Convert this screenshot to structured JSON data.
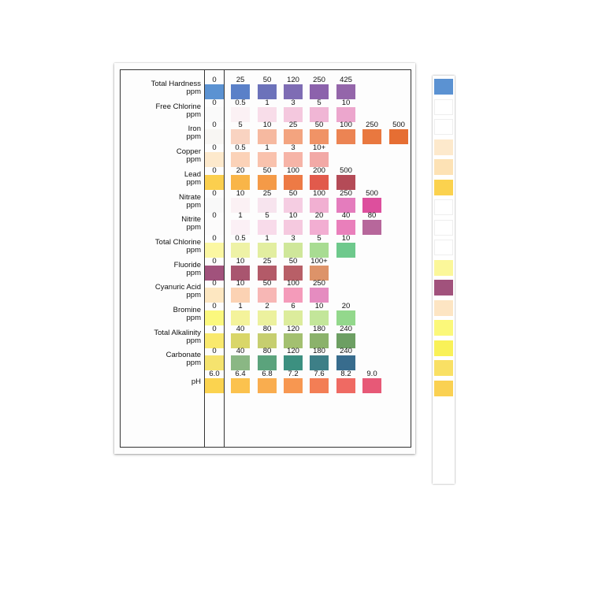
{
  "rows": [
    {
      "label": "Total Hardness",
      "unit": "ppm",
      "values": [
        "0",
        "25",
        "50",
        "120",
        "250",
        "425"
      ],
      "colors": [
        "#5b92d2",
        "#5a80c8",
        "#6c72ba",
        "#7e6cb4",
        "#8c62ac",
        "#9466aa"
      ]
    },
    {
      "label": "Free Chlorine",
      "unit": "ppm",
      "values": [
        "0",
        "0.5",
        "1",
        "3",
        "5",
        "10"
      ],
      "colors": [
        "#fafafa",
        "#fbf1f4",
        "#f8dde9",
        "#f4c8de",
        "#f0b6d5",
        "#eca6cd"
      ]
    },
    {
      "label": "Iron",
      "unit": "ppm",
      "values": [
        "0",
        "5",
        "10",
        "25",
        "50",
        "100",
        "250",
        "500"
      ],
      "colors": [
        "#f8f6f3",
        "#f9d3c1",
        "#f6b9a0",
        "#f3a47f",
        "#f09366",
        "#ec8453",
        "#e9783f",
        "#e66e33"
      ]
    },
    {
      "label": "Copper",
      "unit": "ppm",
      "values": [
        "0",
        "0.5",
        "1",
        "3",
        "10+"
      ],
      "colors": [
        "#fde9cc",
        "#fbd2b8",
        "#f9c2ad",
        "#f6b4a7",
        "#f2a9a6"
      ]
    },
    {
      "label": "Lead",
      "unit": "ppm",
      "values": [
        "0",
        "20",
        "50",
        "100",
        "200",
        "500"
      ],
      "colors": [
        "#fbcf4e",
        "#f9b548",
        "#f49a47",
        "#ed7a45",
        "#e15a4c",
        "#b44b57"
      ]
    },
    {
      "label": "Nitrate",
      "unit": "ppm",
      "values": [
        "0",
        "10",
        "25",
        "50",
        "100",
        "250",
        "500"
      ],
      "colors": [
        "#f9f9f9",
        "#fbf1f4",
        "#f7e4ee",
        "#f5cde2",
        "#f1b0d2",
        "#e47cbd",
        "#dd4f9d"
      ]
    },
    {
      "label": "Nitrite",
      "unit": "ppm",
      "values": [
        "0",
        "1",
        "5",
        "10",
        "20",
        "40",
        "80"
      ],
      "colors": [
        "#fcfbfb",
        "#fbf0f5",
        "#f8dbea",
        "#f5c9df",
        "#f2aed2",
        "#e97fbb",
        "#b7679b"
      ]
    },
    {
      "label": "Total Chlorine",
      "unit": "ppm",
      "values": [
        "0",
        "0.5",
        "1",
        "3",
        "5",
        "10"
      ],
      "colors": [
        "#fbf7a2",
        "#eef2a6",
        "#e2eea0",
        "#cfe79a",
        "#a8dc92",
        "#6ec98c"
      ]
    },
    {
      "label": "Fluoride",
      "unit": "ppm",
      "values": [
        "0",
        "10",
        "25",
        "50",
        "100+"
      ],
      "colors": [
        "#a1527c",
        "#a9556f",
        "#b35a68",
        "#b85f67",
        "#dd9369"
      ]
    },
    {
      "label": "Cyanuric Acid",
      "unit": "ppm",
      "values": [
        "0",
        "10",
        "50",
        "100",
        "250"
      ],
      "colors": [
        "#fde7c1",
        "#fbd2b3",
        "#f7b7b5",
        "#f49bba",
        "#e58cc0"
      ]
    },
    {
      "label": "Bromine",
      "unit": "ppm",
      "values": [
        "0",
        "1",
        "2",
        "6",
        "10",
        "20"
      ],
      "colors": [
        "#fbf87e",
        "#f4f39b",
        "#ecf19e",
        "#dcec9c",
        "#c3e69a",
        "#93d88c"
      ]
    },
    {
      "label": "Total Alkalinity",
      "unit": "ppm",
      "values": [
        "0",
        "40",
        "80",
        "120",
        "180",
        "240"
      ],
      "colors": [
        "#f9e96d",
        "#d9d669",
        "#c6ce6f",
        "#a3c070",
        "#8bb26b",
        "#6d9f63"
      ]
    },
    {
      "label": "Carbonate",
      "unit": "ppm",
      "values": [
        "0",
        "40",
        "80",
        "120",
        "180",
        "240"
      ],
      "colors": [
        "#f5e36e",
        "#8ab784",
        "#5ba37c",
        "#3c9080",
        "#3d7f87",
        "#386c8d"
      ]
    },
    {
      "label": "pH",
      "unit": "",
      "values": [
        "6.0",
        "6.4",
        "6.8",
        "7.2",
        "7.6",
        "8.2",
        "9.0"
      ],
      "colors": [
        "#fbd34f",
        "#fbc24e",
        "#f9ad4f",
        "#f79751",
        "#f37e55",
        "#ef6a63",
        "#e75977"
      ]
    }
  ],
  "strip_pads": [
    "#5b92d2",
    "#ffffff",
    "#ffffff",
    "#fde9cc",
    "#fde2b5",
    "#fbd24e",
    "#ffffff",
    "#ffffff",
    "#ffffff",
    "#fbf79a",
    "#a1527c",
    "#fde5c3",
    "#fbf87a",
    "#f9f158",
    "#f9e064",
    "#fad152"
  ]
}
